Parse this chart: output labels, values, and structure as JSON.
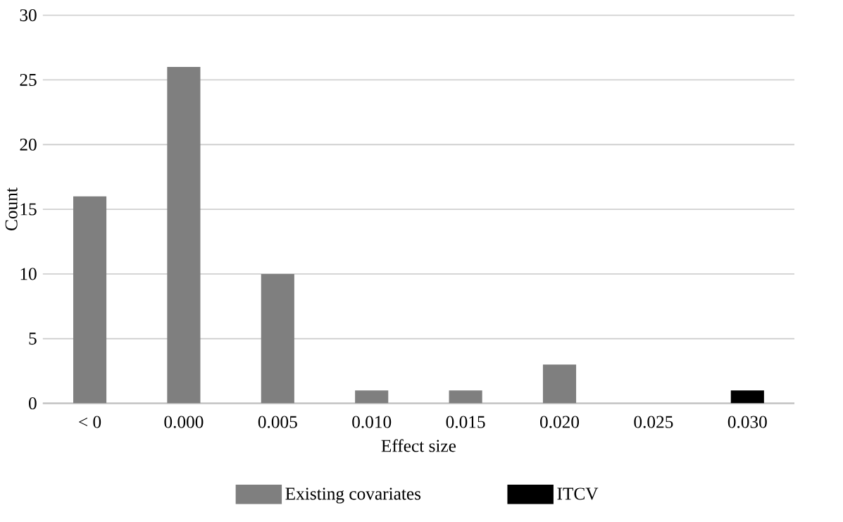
{
  "chart_data": {
    "type": "bar",
    "xlabel": "Effect size",
    "ylabel": "Count",
    "categories": [
      "< 0",
      "0.000",
      "0.005",
      "0.010",
      "0.015",
      "0.020",
      "0.025",
      "0.030"
    ],
    "series": [
      {
        "name": "Existing covariates",
        "color": "#7f7f7f",
        "values": [
          16,
          26,
          10,
          1,
          1,
          3,
          null,
          null
        ]
      },
      {
        "name": "ITCV",
        "color": "#000000",
        "values": [
          null,
          null,
          null,
          null,
          null,
          null,
          null,
          1
        ]
      }
    ],
    "ylim": [
      0,
      30
    ],
    "yticks": [
      0,
      5,
      10,
      15,
      20,
      25,
      30
    ],
    "grid": "y",
    "legend": "bottom"
  }
}
